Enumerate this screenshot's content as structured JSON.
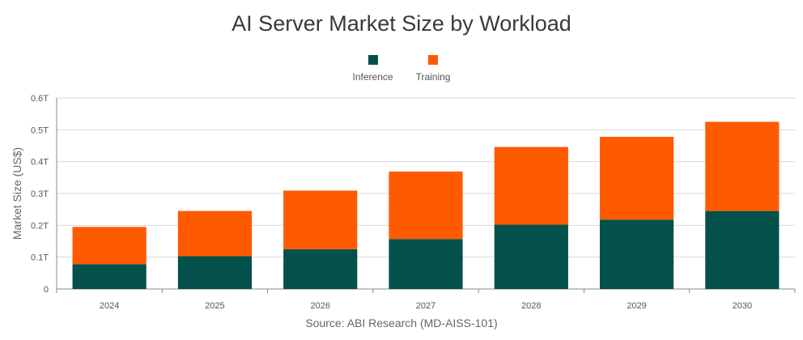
{
  "chart_data": {
    "type": "bar",
    "stacked": true,
    "title": "AI Server Market Size by Workload",
    "ylabel": "Market Size (US$)",
    "xlabel": "",
    "source": "Source: ABI Research (MD-AISS-101)",
    "categories": [
      "2024",
      "2025",
      "2026",
      "2027",
      "2028",
      "2029",
      "2030"
    ],
    "yticks": [
      "0",
      "0.1T",
      "0.2T",
      "0.3T",
      "0.4T",
      "0.5T",
      "0.6T"
    ],
    "ylim": [
      0,
      0.6
    ],
    "grid": true,
    "legend_position": "top",
    "series": [
      {
        "name": "Inference",
        "color": "#03514a",
        "values": [
          0.078,
          0.103,
          0.125,
          0.157,
          0.202,
          0.218,
          0.245
        ]
      },
      {
        "name": "Training",
        "color": "#ff5a00",
        "values": [
          0.117,
          0.142,
          0.184,
          0.212,
          0.244,
          0.26,
          0.28
        ]
      }
    ]
  }
}
